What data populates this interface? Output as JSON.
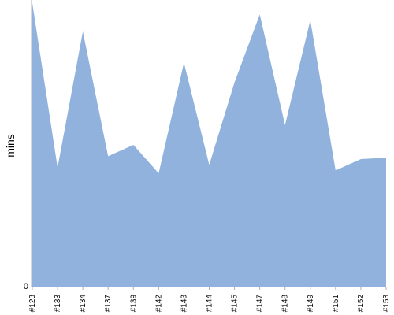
{
  "chart_data": {
    "type": "area",
    "title": "",
    "xlabel": "",
    "ylabel": "mins",
    "categories": [
      "#123",
      "#133",
      "#134",
      "#137",
      "#139",
      "#142",
      "#143",
      "#144",
      "#145",
      "#147",
      "#148",
      "#149",
      "#151",
      "#152",
      "#153"
    ],
    "series": [
      {
        "values": [
          1.03,
          0.42,
          0.9,
          0.46,
          0.5,
          0.4,
          0.79,
          0.43,
          0.72,
          0.96,
          0.57,
          0.94,
          0.41,
          0.45,
          0.455
        ],
        "color": "#90b2dc"
      }
    ],
    "y_ticks": [
      {
        "value": 0,
        "label": "0"
      }
    ],
    "ylim": [
      0,
      1.0
    ],
    "grid": false,
    "legend": "none",
    "axis_color": "#b0b0b0"
  }
}
